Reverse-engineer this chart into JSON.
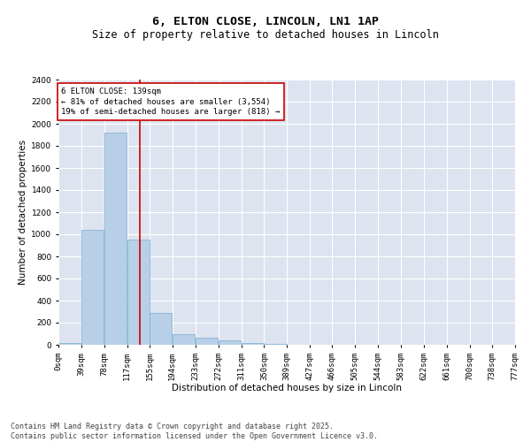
{
  "title": "6, ELTON CLOSE, LINCOLN, LN1 1AP",
  "subtitle": "Size of property relative to detached houses in Lincoln",
  "xlabel": "Distribution of detached houses by size in Lincoln",
  "ylabel": "Number of detached properties",
  "bar_color": "#b8cfe8",
  "bar_edge_color": "#7aadd4",
  "background_color": "#dde4f0",
  "annotation_line_color": "#cc0000",
  "annotation_box_color": "#cc0000",
  "property_size": 139,
  "annotation_text": "6 ELTON CLOSE: 139sqm\n← 81% of detached houses are smaller (3,554)\n19% of semi-detached houses are larger (818) →",
  "bins": [
    0,
    39,
    78,
    117,
    155,
    194,
    233,
    272,
    311,
    350,
    389,
    427,
    466,
    505,
    544,
    583,
    622,
    661,
    700,
    738,
    777
  ],
  "bin_labels": [
    "0sqm",
    "39sqm",
    "78sqm",
    "117sqm",
    "155sqm",
    "194sqm",
    "233sqm",
    "272sqm",
    "311sqm",
    "350sqm",
    "389sqm",
    "427sqm",
    "466sqm",
    "505sqm",
    "544sqm",
    "583sqm",
    "622sqm",
    "661sqm",
    "700sqm",
    "738sqm",
    "777sqm"
  ],
  "values": [
    20,
    1040,
    1920,
    950,
    290,
    100,
    65,
    40,
    15,
    8,
    3,
    0,
    0,
    0,
    0,
    0,
    0,
    0,
    0,
    0
  ],
  "ylim": [
    0,
    2400
  ],
  "yticks": [
    0,
    200,
    400,
    600,
    800,
    1000,
    1200,
    1400,
    1600,
    1800,
    2000,
    2200,
    2400
  ],
  "footer": "Contains HM Land Registry data © Crown copyright and database right 2025.\nContains public sector information licensed under the Open Government Licence v3.0.",
  "title_fontsize": 9.5,
  "subtitle_fontsize": 8.5,
  "axis_label_fontsize": 7.5,
  "tick_fontsize": 6.5,
  "footer_fontsize": 6,
  "annotation_fontsize": 6.5
}
